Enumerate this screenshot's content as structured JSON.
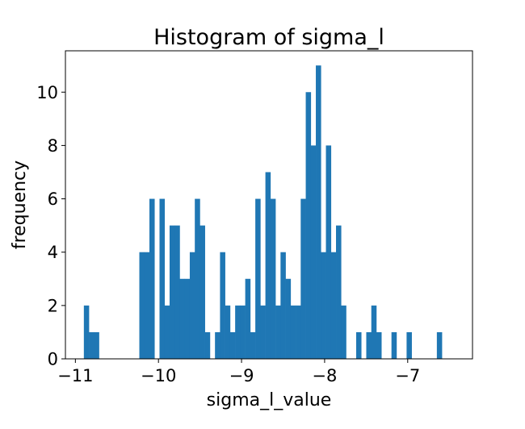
{
  "chart_data": {
    "type": "bar",
    "title": "Histogram of sigma_l",
    "xlabel": "sigma_l_value",
    "ylabel": "frequency",
    "xlim": [
      -11.12,
      -6.22
    ],
    "ylim": [
      0,
      11.55
    ],
    "xticks": [
      -11,
      -10,
      -9,
      -8,
      -7
    ],
    "xtick_labels": [
      "−11",
      "−10",
      "−9",
      "−8",
      "−7"
    ],
    "yticks": [
      0,
      2,
      4,
      6,
      8,
      10
    ],
    "ytick_labels": [
      "0",
      "2",
      "4",
      "6",
      "8",
      "10"
    ],
    "bar_color": "#1f77b4",
    "bin_start": -10.898,
    "bin_width": 0.0607,
    "counts": [
      2,
      1,
      1,
      0,
      0,
      0,
      0,
      0,
      0,
      0,
      0,
      4,
      4,
      6,
      0,
      6,
      2,
      5,
      5,
      3,
      3,
      4,
      6,
      5,
      1,
      0,
      1,
      4,
      2,
      1,
      2,
      2,
      3,
      1,
      6,
      2,
      7,
      6,
      2,
      4,
      3,
      2,
      2,
      6,
      10,
      8,
      11,
      4,
      8,
      4,
      5,
      2,
      0,
      0,
      1,
      0,
      1,
      2,
      1,
      0,
      0,
      1,
      0,
      0,
      1,
      0,
      0,
      0,
      0,
      0,
      1
    ],
    "grid": false,
    "legend": "none"
  }
}
